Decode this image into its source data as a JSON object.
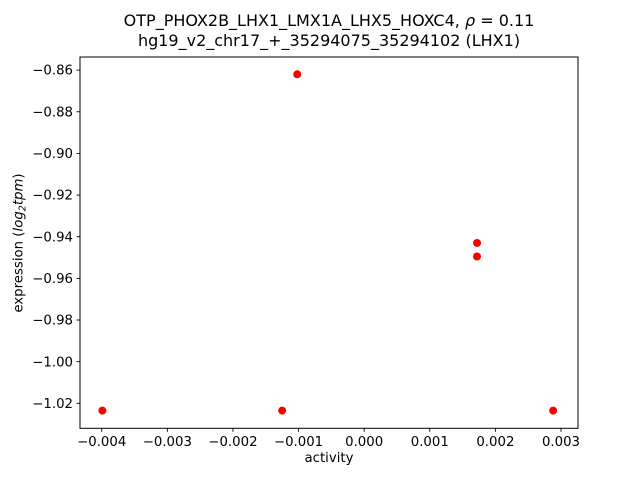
{
  "chart_data": {
    "type": "scatter",
    "title": "OTP_PHOX2B_LHX1_LMX1A_LHX5_HOXC4, ρ = 0.11",
    "subtitle": "hg19_v2_chr17_+_35294075_35294102 (LHX1)",
    "title_parts": {
      "prefix": "OTP_PHOX2B_LHX1_LMX1A_LHX5_HOXC4, ",
      "rho": "ρ",
      "suffix": " = 0.11"
    },
    "rho_value": 0.11,
    "x_axis": {
      "label": "activity",
      "tick_values": [
        -0.004,
        -0.003,
        -0.002,
        -0.001,
        0.0,
        0.001,
        0.002,
        0.003
      ],
      "tick_labels": [
        "−0.004",
        "−0.003",
        "−0.002",
        "−0.001",
        "0.000",
        "0.001",
        "0.002",
        "0.003"
      ],
      "range": [
        -0.004331,
        0.003259
      ]
    },
    "y_axis": {
      "label": "expression (log2tpm)",
      "label_parts": {
        "prefix": "expression (",
        "log": "log",
        "sub": "2",
        "unit": "tpm",
        "suffix": ")"
      },
      "tick_values": [
        -0.86,
        -0.88,
        -0.9,
        -0.92,
        -0.94,
        -0.96,
        -0.98,
        -1.0,
        -1.02
      ],
      "tick_labels": [
        "−0.86",
        "−0.88",
        "−0.90",
        "−0.92",
        "−0.94",
        "−0.96",
        "−0.98",
        "−1.00",
        "−1.02"
      ],
      "range": [
        -1.032,
        -0.8537
      ]
    },
    "marker": {
      "shape": "circle",
      "color": "#ff0000",
      "radius_px": 4
    },
    "grid": false,
    "legend": false,
    "points": [
      {
        "x": -0.00102,
        "y": -0.862
      },
      {
        "x": 0.00172,
        "y": -0.943
      },
      {
        "x": 0.00172,
        "y": -0.9495
      },
      {
        "x": -0.00399,
        "y": -1.0235
      },
      {
        "x": -0.00125,
        "y": -1.0235
      },
      {
        "x": 0.00288,
        "y": -1.0235
      }
    ]
  }
}
